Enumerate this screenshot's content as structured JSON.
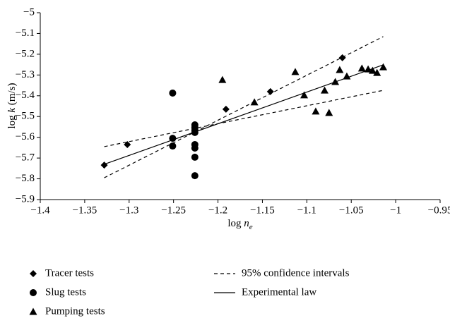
{
  "chart_data": {
    "type": "scatter",
    "xlabel": [
      "log ",
      "n",
      "e"
    ],
    "ylabel": [
      "log ",
      "k",
      " (m/s)"
    ],
    "xlim": [
      -1.4,
      -0.95
    ],
    "ylim": [
      -5.9,
      -5
    ],
    "xticks": [
      {
        "value": -1.4,
        "label": "−1.4"
      },
      {
        "value": -1.35,
        "label": "−1.35"
      },
      {
        "value": -1.3,
        "label": "−1.3"
      },
      {
        "value": -1.25,
        "label": "−1.25"
      },
      {
        "value": -1.2,
        "label": "−1.2"
      },
      {
        "value": -1.15,
        "label": "−1.15"
      },
      {
        "value": -1.1,
        "label": "−1.1"
      },
      {
        "value": -1.05,
        "label": "−1.05"
      },
      {
        "value": -1,
        "label": "−1"
      },
      {
        "value": -0.95,
        "label": "−0.95"
      }
    ],
    "yticks": [
      {
        "value": -5,
        "label": "−5"
      },
      {
        "value": -5.1,
        "label": "−5.1"
      },
      {
        "value": -5.2,
        "label": "−5.2"
      },
      {
        "value": -5.3,
        "label": "−5.3"
      },
      {
        "value": -5.4,
        "label": "−5.4"
      },
      {
        "value": -5.5,
        "label": "−5.5"
      },
      {
        "value": -5.6,
        "label": "−5.6"
      },
      {
        "value": -5.7,
        "label": "−5.7"
      },
      {
        "value": -5.8,
        "label": "−5.8"
      },
      {
        "value": -5.9,
        "label": "−5.9"
      }
    ],
    "series": [
      {
        "name": "Tracer tests",
        "marker": "diamond",
        "color": "#000000",
        "x": [
          -1.328,
          -1.302,
          -1.191,
          -1.141,
          -1.06
        ],
        "values": [
          -5.734,
          -5.635,
          -5.465,
          -5.38,
          -5.217
        ]
      },
      {
        "name": "Slug tests",
        "marker": "circle",
        "color": "#000000",
        "x": [
          -1.251,
          -1.251,
          -1.251,
          -1.226,
          -1.226,
          -1.226,
          -1.226,
          -1.226,
          -1.226,
          -1.226,
          -1.226
        ],
        "values": [
          -5.387,
          -5.605,
          -5.642,
          -5.54,
          -5.553,
          -5.567,
          -5.577,
          -5.635,
          -5.652,
          -5.696,
          -5.785
        ]
      },
      {
        "name": "Pumping tests",
        "marker": "triangle",
        "color": "#000000",
        "x": [
          -1.195,
          -1.159,
          -1.113,
          -1.103,
          -1.09,
          -1.08,
          -1.075,
          -1.068,
          -1.063,
          -1.055,
          -1.038,
          -1.031,
          -1.026,
          -1.021,
          -1.014
        ],
        "values": [
          -5.323,
          -5.431,
          -5.285,
          -5.397,
          -5.475,
          -5.374,
          -5.482,
          -5.333,
          -5.275,
          -5.306,
          -5.268,
          -5.272,
          -5.279,
          -5.289,
          -5.262
        ]
      },
      {
        "name": "95% confidence intervals",
        "line": "dashed",
        "color": "#000000",
        "lines": [
          {
            "x": [
              -1.328,
              -1.014
            ],
            "values": [
              -5.795,
              -5.115
            ]
          },
          {
            "x": [
              -1.328,
              -1.014
            ],
            "values": [
              -5.645,
              -5.374
            ]
          }
        ]
      },
      {
        "name": "Experimental law",
        "line": "solid",
        "color": "#000000",
        "lines": [
          {
            "x": [
              -1.328,
              -1.014
            ],
            "values": [
              -5.73,
              -5.251
            ]
          }
        ]
      }
    ]
  }
}
